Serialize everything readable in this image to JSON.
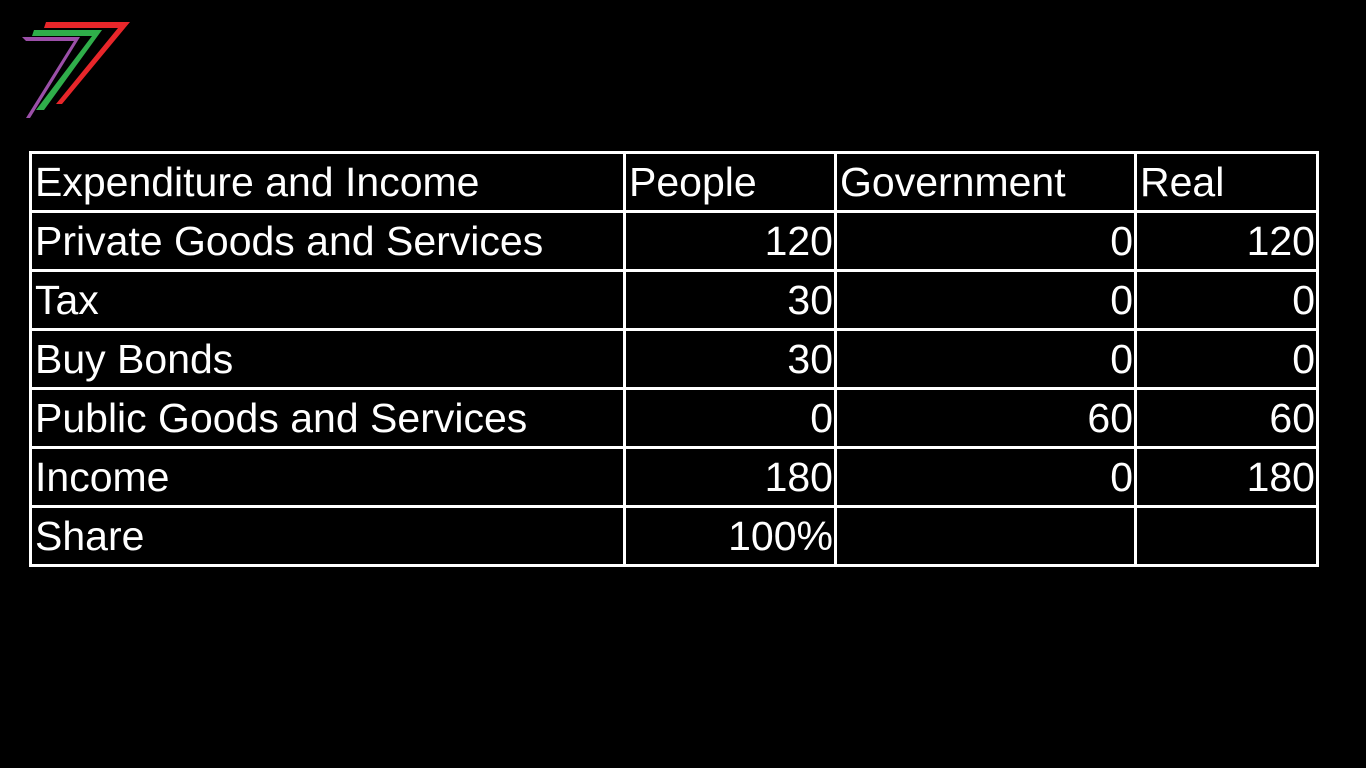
{
  "logo": {
    "name": "seven-logo",
    "colors": [
      "#e8262a",
      "#2fae4a",
      "#9b4fa8"
    ]
  },
  "table": {
    "header": [
      "Expenditure and Income",
      "People",
      "Government",
      "Real"
    ],
    "rows": [
      [
        "Private Goods and Services",
        "120",
        "0",
        "120"
      ],
      [
        "Tax",
        "30",
        "0",
        "0"
      ],
      [
        "Buy Bonds",
        "30",
        "0",
        "0"
      ],
      [
        "Public Goods and Services",
        "0",
        "60",
        "60"
      ],
      [
        "Income",
        "180",
        "0",
        "180"
      ],
      [
        "Share",
        "100%",
        "",
        ""
      ]
    ]
  },
  "colors": {
    "background": "#000000",
    "text": "#ffffff",
    "border": "#ffffff"
  }
}
